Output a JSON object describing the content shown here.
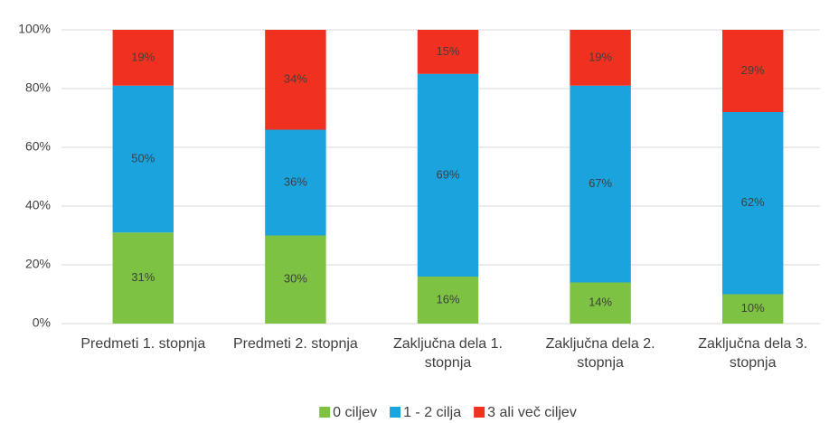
{
  "chart_data": {
    "type": "stacked_bar",
    "categories": [
      "Predmeti 1. stopnja",
      "Predmeti 2. stopnja",
      "Zaključna dela 1. stopnja",
      "Zaključna dela 2. stopnja",
      "Zaključna dela 3. stopnja"
    ],
    "series": [
      {
        "name": "0 ciljev",
        "color": "#7dc242",
        "values": [
          31,
          30,
          16,
          14,
          10
        ],
        "value_labels": [
          "31%",
          "30%",
          "16%",
          "14%",
          "10%"
        ]
      },
      {
        "name": "1 - 2 cilja",
        "color": "#1aa3dc",
        "values": [
          50,
          36,
          69,
          67,
          62
        ],
        "value_labels": [
          "50%",
          "36%",
          "69%",
          "67%",
          "62%"
        ]
      },
      {
        "name": "3 ali več ciljev",
        "color": "#f0311f",
        "values": [
          19,
          34,
          15,
          19,
          29
        ],
        "value_labels": [
          "19%",
          "34%",
          "15%",
          "19%",
          "29%"
        ]
      }
    ],
    "ylim": [
      0,
      100
    ],
    "yticks": [
      {
        "value": 0,
        "label": "0%"
      },
      {
        "value": 20,
        "label": "20%"
      },
      {
        "value": 40,
        "label": "40%"
      },
      {
        "value": 60,
        "label": "60%"
      },
      {
        "value": 80,
        "label": "80%"
      },
      {
        "value": 100,
        "label": "100%"
      }
    ],
    "grid": true,
    "legend": "bottom"
  }
}
